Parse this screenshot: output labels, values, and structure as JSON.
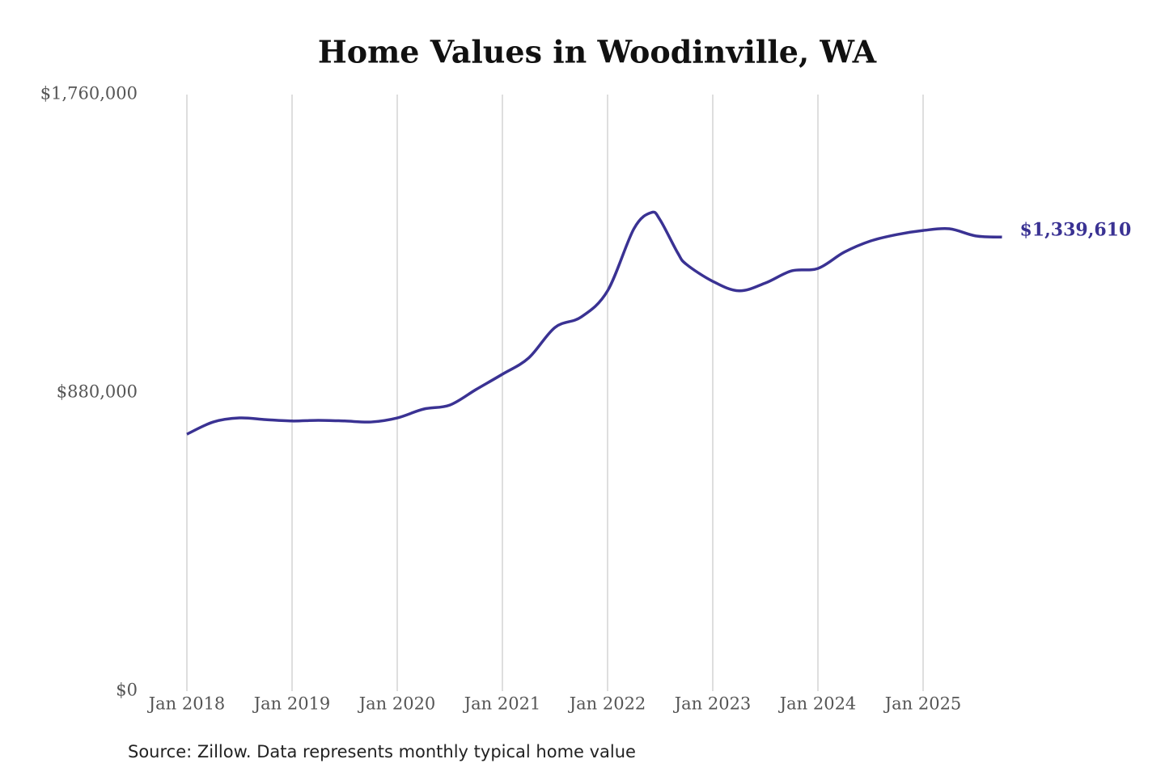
{
  "chart_data": {
    "type": "line",
    "title": "Home Values in Woodinville, WA",
    "source": "Source: Zillow. Data represents monthly typical home value",
    "color": "#3a3293",
    "grid": "x",
    "x": [
      "2018-01",
      "2018-04",
      "2018-07",
      "2018-10",
      "2019-01",
      "2019-04",
      "2019-07",
      "2019-10",
      "2020-01",
      "2020-04",
      "2020-07",
      "2020-10",
      "2021-01",
      "2021-04",
      "2021-07",
      "2021-10",
      "2022-01",
      "2022-04",
      "2022-06",
      "2022-07",
      "2022-09",
      "2022-10",
      "2023-01",
      "2023-04",
      "2023-07",
      "2023-10",
      "2024-01",
      "2024-04",
      "2024-07",
      "2024-10",
      "2025-01",
      "2025-04",
      "2025-07",
      "2025-10"
    ],
    "values": [
      758000,
      794000,
      806000,
      801000,
      797000,
      799000,
      797000,
      794000,
      806000,
      832000,
      844000,
      890000,
      935000,
      983000,
      1073000,
      1104000,
      1181000,
      1364000,
      1412000,
      1390000,
      1293000,
      1259000,
      1209000,
      1181000,
      1204000,
      1240000,
      1247000,
      1295000,
      1328000,
      1347000,
      1359000,
      1364000,
      1343000,
      1339610
    ],
    "value_labels": [
      null,
      null,
      null,
      null,
      null,
      null,
      null,
      null,
      null,
      null,
      null,
      null,
      null,
      null,
      null,
      null,
      null,
      null,
      null,
      null,
      null,
      null,
      null,
      null,
      null,
      null,
      null,
      null,
      null,
      null,
      null,
      null,
      null,
      "$1,339,610"
    ],
    "xticks": [
      {
        "value": "2018-01",
        "label": "Jan 2018"
      },
      {
        "value": "2019-01",
        "label": "Jan 2019"
      },
      {
        "value": "2020-01",
        "label": "Jan 2020"
      },
      {
        "value": "2021-01",
        "label": "Jan 2021"
      },
      {
        "value": "2022-01",
        "label": "Jan 2022"
      },
      {
        "value": "2023-01",
        "label": "Jan 2023"
      },
      {
        "value": "2024-01",
        "label": "Jan 2024"
      },
      {
        "value": "2025-01",
        "label": "Jan 2025"
      }
    ],
    "ylim": [
      0,
      1760000
    ],
    "yticks": [
      {
        "value": 0,
        "label": "$0"
      },
      {
        "value": 880000,
        "label": "$880,000"
      },
      {
        "value": 1760000,
        "label": "$1,760,000"
      }
    ]
  }
}
